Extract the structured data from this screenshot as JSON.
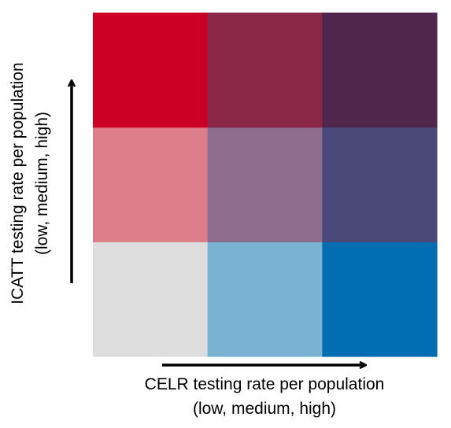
{
  "chart_data": {
    "type": "heatmap",
    "title": "",
    "xlabel": "CELR testing rate per population",
    "xlabel_sub": "(low, medium, high)",
    "ylabel": "ICATT testing rate per population",
    "ylabel_sub": "(low, medium, high)",
    "x_levels": [
      "low",
      "medium",
      "high"
    ],
    "y_levels": [
      "low",
      "medium",
      "high"
    ],
    "grid": false,
    "cells": [
      {
        "x": "low",
        "y": "low",
        "color": "#dddddd"
      },
      {
        "x": "medium",
        "y": "low",
        "color": "#7ab3d2"
      },
      {
        "x": "high",
        "y": "low",
        "color": "#006eb0"
      },
      {
        "x": "low",
        "y": "medium",
        "color": "#de7d8a"
      },
      {
        "x": "medium",
        "y": "medium",
        "color": "#8e6c8e"
      },
      {
        "x": "high",
        "y": "medium",
        "color": "#4a4979"
      },
      {
        "x": "low",
        "y": "high",
        "color": "#cc0025"
      },
      {
        "x": "medium",
        "y": "high",
        "color": "#8b2848"
      },
      {
        "x": "high",
        "y": "high",
        "color": "#50264d"
      }
    ]
  }
}
